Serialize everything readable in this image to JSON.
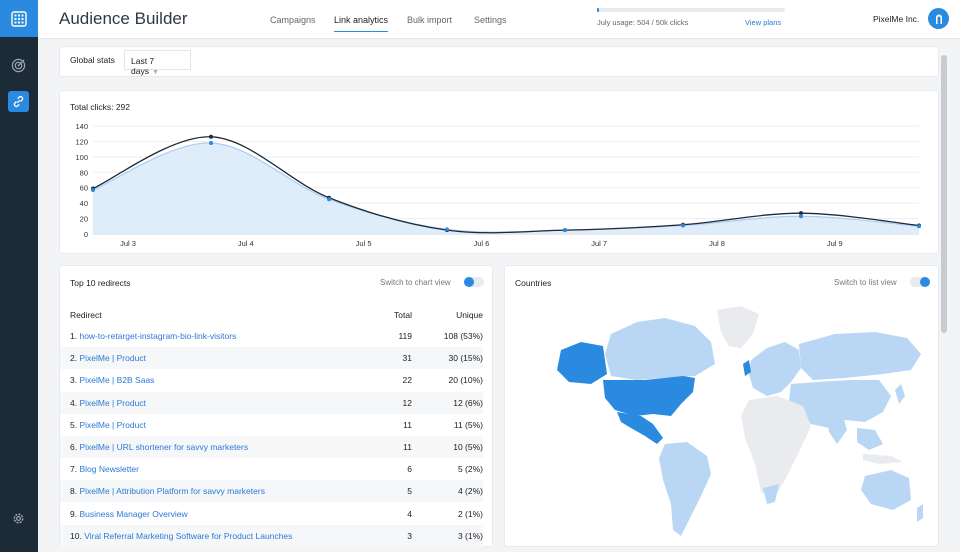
{
  "app": {
    "title": "Audience Builder"
  },
  "nav": {
    "tabs": [
      {
        "label": "Campaigns"
      },
      {
        "label": "Link analytics"
      },
      {
        "label": "Bulk import"
      },
      {
        "label": "Settings"
      }
    ]
  },
  "usage": {
    "text": "July usage: 504 / 50k clicks",
    "fraction": 0.01,
    "link": "View plans"
  },
  "account": {
    "name": "PixelMe Inc."
  },
  "filters": {
    "label": "Global stats",
    "range": "Last 7 days"
  },
  "chart": {
    "title": "Total clicks: 292"
  },
  "chart_data": {
    "type": "line",
    "yticks": [
      0,
      20,
      40,
      60,
      80,
      100,
      120,
      140
    ],
    "ylim": [
      0,
      140
    ],
    "xticks": [
      "Jul 3",
      "Jul 4",
      "Jul 5",
      "Jul 6",
      "Jul 7",
      "Jul 8",
      "Jul 9"
    ],
    "series": [
      {
        "values": [
          59,
          126,
          47,
          5,
          5,
          12,
          27,
          11
        ],
        "color": "#1e2a36"
      },
      {
        "values": [
          57,
          118,
          45,
          6,
          5,
          11,
          23,
          10
        ],
        "color": "#2a8ae0"
      }
    ],
    "grid": true
  },
  "redirects": {
    "title": "Top 10 redirects",
    "switch_label": "Switch to chart view",
    "col_redirect": "Redirect",
    "col_total": "Total",
    "col_unique": "Unique",
    "rows": [
      {
        "num": "1.",
        "name": "how-to-retarget-instagram-bio-link-visitors",
        "total": "119",
        "unique": "108 (53%)"
      },
      {
        "num": "2.",
        "name": "PixelMe | Product",
        "total": "31",
        "unique": "30 (15%)"
      },
      {
        "num": "3.",
        "name": "PixelMe | B2B Saas",
        "total": "22",
        "unique": "20 (10%)"
      },
      {
        "num": "4.",
        "name": "PixelMe | Product",
        "total": "12",
        "unique": "12 (6%)"
      },
      {
        "num": "5.",
        "name": "PixelMe | Product",
        "total": "11",
        "unique": "11 (5%)"
      },
      {
        "num": "6.",
        "name": "PixelMe | URL shortener for savvy marketers",
        "total": "11",
        "unique": "10 (5%)"
      },
      {
        "num": "7.",
        "name": "Blog Newsletter",
        "total": "6",
        "unique": "5 (2%)"
      },
      {
        "num": "8.",
        "name": "PixelMe | Attribution Platform for savvy marketers",
        "total": "5",
        "unique": "4 (2%)"
      },
      {
        "num": "9.",
        "name": "Business Manager Overview",
        "total": "4",
        "unique": "2 (1%)"
      },
      {
        "num": "10.",
        "name": "Viral Referral Marketing Software for Product Launches",
        "total": "3",
        "unique": "3 (1%)"
      }
    ]
  },
  "countries": {
    "title": "Countries",
    "switch_label": "Switch to list view"
  },
  "icons": {
    "logo": "grid-icon",
    "campaigns": "target-icon",
    "links": "link-icon",
    "settings": "gear-icon",
    "avatar": "user-icon"
  },
  "colors": {
    "accent": "#2a8ae0",
    "sidebar": "#1d2b36",
    "map_dark": "#2a8ae0",
    "map_light": "#b9d7f5",
    "map_none": "#e9ebee"
  }
}
